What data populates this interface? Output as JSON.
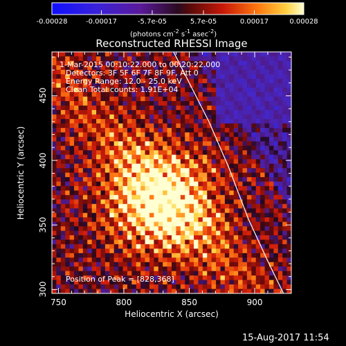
{
  "colorbar": {
    "ticks": [
      "-0.00028",
      "-0.00017",
      "-5.7e-05",
      "5.7e-05",
      "0.00017",
      "0.00028"
    ],
    "tick_values": [
      -0.00028,
      -0.00017,
      -5.7e-05,
      5.7e-05,
      0.00017,
      0.00028
    ],
    "range": [
      -0.00028,
      0.00028
    ],
    "units_text": "(photons cm",
    "units_exp1": "-2",
    "units_mid": " s",
    "units_exp2": "-1",
    "units_end": " asec",
    "units_exp3": "-2",
    "units_close": ")"
  },
  "info": {
    "time": "1-Mar-2015 00:10:22.000 to 00:20:22.000",
    "detectors": "Detectors: 3F 5F 6F 7F 8F 9F, Att 0",
    "energy": "Energy Range: 12.0 - 25.0 keV",
    "clean": "Clean     Total counts: 1.91E+04",
    "peak": "Position of Peak = [828,368]"
  },
  "footer": {
    "date": "15-Aug-2017 11:54"
  },
  "chart_data": {
    "type": "heatmap",
    "title": "Reconstructed RHESSI Image",
    "xlabel": "Heliocentric X (arcsec)",
    "ylabel": "Heliocentric Y (arcsec)",
    "xlim": [
      745,
      928
    ],
    "ylim": [
      297,
      484
    ],
    "x_ticks": [
      750,
      800,
      850,
      900
    ],
    "y_ticks": [
      300,
      350,
      400,
      450
    ],
    "peak": {
      "x": 828,
      "y": 368
    },
    "limb_curve": {
      "x": [
        838,
        850,
        865,
        880,
        895,
        910,
        922
      ],
      "y": [
        484,
        460,
        430,
        395,
        355,
        322,
        297
      ]
    },
    "colormap": "hot/blue diverging"
  }
}
